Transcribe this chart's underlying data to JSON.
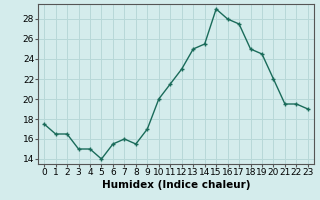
{
  "x": [
    0,
    1,
    2,
    3,
    4,
    5,
    6,
    7,
    8,
    9,
    10,
    11,
    12,
    13,
    14,
    15,
    16,
    17,
    18,
    19,
    20,
    21,
    22,
    23
  ],
  "y": [
    17.5,
    16.5,
    16.5,
    15.0,
    15.0,
    14.0,
    15.5,
    16.0,
    15.5,
    17.0,
    20.0,
    21.5,
    23.0,
    25.0,
    25.5,
    29.0,
    28.0,
    27.5,
    25.0,
    24.5,
    22.0,
    19.5,
    19.5,
    19.0
  ],
  "line_color": "#1a6b5a",
  "marker": "+",
  "marker_size": 3,
  "bg_color": "#d4ecec",
  "grid_color": "#b8d8d8",
  "xlabel": "Humidex (Indice chaleur)",
  "ylabel": "",
  "ylim": [
    13.5,
    29.5
  ],
  "xlim": [
    -0.5,
    23.5
  ],
  "yticks": [
    14,
    16,
    18,
    20,
    22,
    24,
    26,
    28
  ],
  "xtick_labels": [
    "0",
    "1",
    "2",
    "3",
    "4",
    "5",
    "6",
    "7",
    "8",
    "9",
    "10",
    "11",
    "12",
    "13",
    "14",
    "15",
    "16",
    "17",
    "18",
    "19",
    "20",
    "21",
    "22",
    "23"
  ],
  "tick_fontsize": 6.5,
  "xlabel_fontsize": 7.5,
  "line_width": 1.0
}
